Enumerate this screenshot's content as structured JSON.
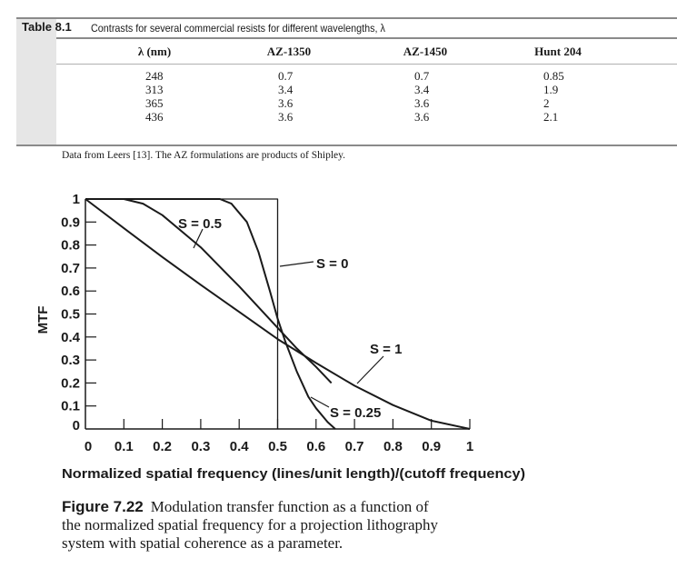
{
  "table": {
    "label": "Table 8.1",
    "title": "Contrasts for several commercial resists for different wavelengths, λ",
    "headers": [
      "λ (nm)",
      "AZ-1350",
      "AZ-1450",
      "Hunt 204"
    ],
    "rows": [
      [
        "248",
        "0.7",
        "0.7",
        "0.85"
      ],
      [
        "313",
        "3.4",
        "3.4",
        "1.9"
      ],
      [
        "365",
        "3.6",
        "3.6",
        "2"
      ],
      [
        "436",
        "3.6",
        "3.6",
        "2.1"
      ]
    ],
    "note": "Data from Leers [13]. The AZ formulations are products of Shipley."
  },
  "chart_data": {
    "type": "line",
    "xlabel": "Normalized spatial frequency (lines/unit length)/(cutoff frequency)",
    "ylabel": "MTF",
    "xlim": [
      0,
      1
    ],
    "ylim": [
      0,
      1
    ],
    "xticks": [
      "0",
      "0.1",
      "0.2",
      "0.3",
      "0.4",
      "0.5",
      "0.6",
      "0.7",
      "0.8",
      "0.9",
      "1"
    ],
    "yticks": [
      "0",
      "0.1",
      "0.2",
      "0.3",
      "0.4",
      "0.5",
      "0.6",
      "0.7",
      "0.8",
      "0.9",
      "1"
    ],
    "grid": false,
    "series": [
      {
        "name": "S = 0",
        "points": [
          [
            0,
            1
          ],
          [
            0.5,
            1
          ],
          [
            0.5,
            0
          ]
        ]
      },
      {
        "name": "S = 0.25",
        "points": [
          [
            0,
            1
          ],
          [
            0.35,
            1
          ],
          [
            0.38,
            0.98
          ],
          [
            0.42,
            0.9
          ],
          [
            0.45,
            0.77
          ],
          [
            0.48,
            0.6
          ],
          [
            0.5,
            0.48
          ],
          [
            0.52,
            0.38
          ],
          [
            0.55,
            0.25
          ],
          [
            0.58,
            0.14
          ],
          [
            0.6,
            0.09
          ],
          [
            0.63,
            0.03
          ],
          [
            0.65,
            0
          ]
        ]
      },
      {
        "name": "S = 0.5",
        "points": [
          [
            0,
            1
          ],
          [
            0.1,
            1
          ],
          [
            0.15,
            0.98
          ],
          [
            0.2,
            0.93
          ],
          [
            0.3,
            0.79
          ],
          [
            0.4,
            0.62
          ],
          [
            0.5,
            0.44
          ],
          [
            0.55,
            0.35
          ],
          [
            0.6,
            0.27
          ],
          [
            0.64,
            0.2
          ]
        ]
      },
      {
        "name": "S = 1",
        "points": [
          [
            0,
            1
          ],
          [
            0.1,
            0.873
          ],
          [
            0.2,
            0.748
          ],
          [
            0.3,
            0.627
          ],
          [
            0.4,
            0.509
          ],
          [
            0.5,
            0.391
          ],
          [
            0.6,
            0.287
          ],
          [
            0.7,
            0.188
          ],
          [
            0.8,
            0.104
          ],
          [
            0.9,
            0.036
          ],
          [
            1,
            0
          ]
        ]
      }
    ]
  },
  "caption": {
    "label": "Figure 7.22",
    "line1": "Modulation transfer function as a function of",
    "line2": "the normalized spatial frequency for a projection lithography",
    "line3": "system with spatial coherence as a parameter."
  }
}
